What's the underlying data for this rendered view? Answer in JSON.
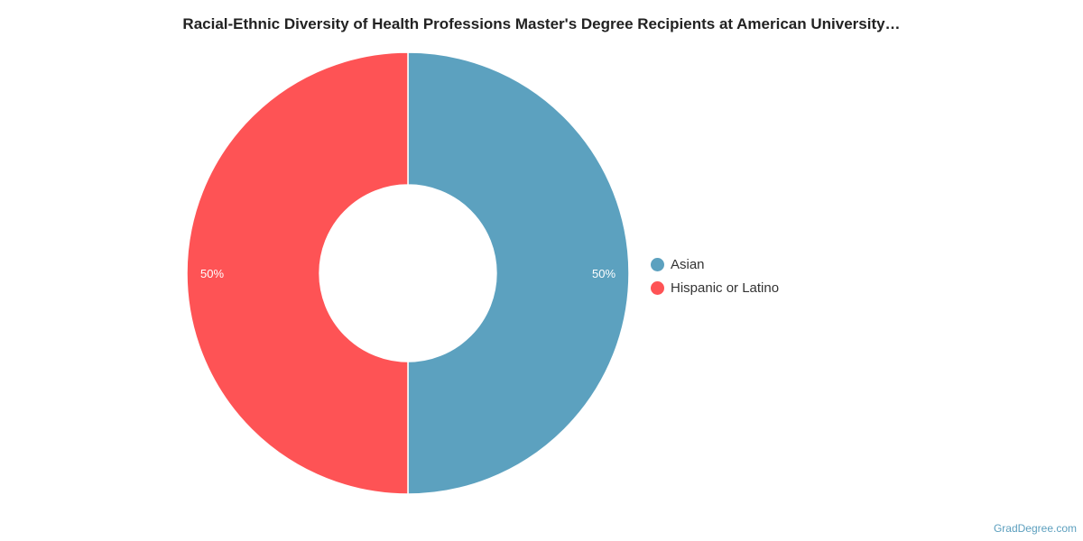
{
  "chart_data": {
    "type": "pie",
    "title": "Racial-Ethnic Diversity of Health Professions Master's Degree Recipients at American University…",
    "slices": [
      {
        "label": "Asian",
        "value": 50,
        "display": "50%",
        "color": "#5ca1bf"
      },
      {
        "label": "Hispanic or Latino",
        "value": 50,
        "display": "50%",
        "color": "#fe5355"
      }
    ],
    "donut": true,
    "legend_position": "right"
  },
  "source": {
    "credit": "GradDegree.com"
  }
}
